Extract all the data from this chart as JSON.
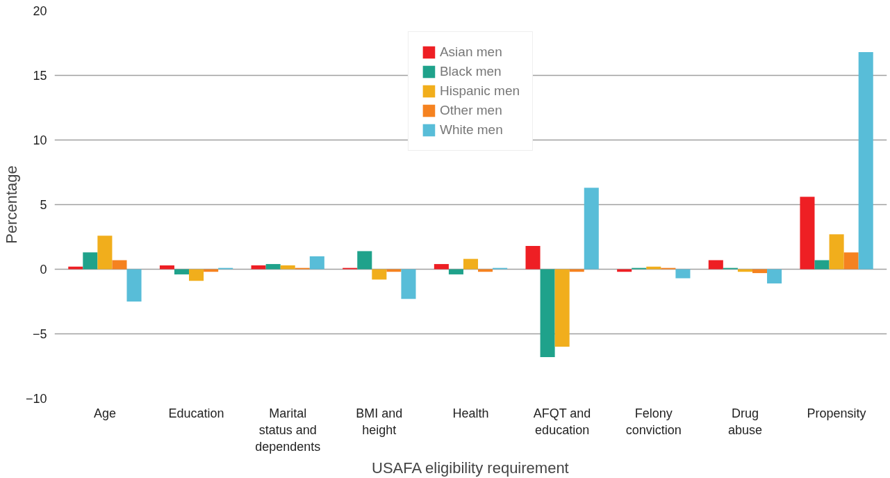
{
  "chart_data": {
    "type": "bar",
    "xlabel": "USAFA eligibility requirement",
    "ylabel": "Percentage",
    "categories": [
      "Age",
      "Education",
      "Marital\nstatus and\ndependents",
      "BMI and\nheight",
      "Health",
      "AFQT and\neducation",
      "Felony\nconviction",
      "Drug\nabuse",
      "Propensity"
    ],
    "series": [
      {
        "name": "Asian men",
        "color": "#ee1f24",
        "values": [
          0.2,
          0.3,
          0.3,
          0.1,
          0.4,
          1.8,
          -0.2,
          0.7,
          5.6
        ]
      },
      {
        "name": "Black men",
        "color": "#1fa28b",
        "values": [
          1.3,
          -0.4,
          0.4,
          1.4,
          -0.4,
          -6.8,
          0.1,
          0.1,
          0.7
        ]
      },
      {
        "name": "Hispanic men",
        "color": "#f1ae1c",
        "values": [
          2.6,
          -0.9,
          0.3,
          -0.8,
          0.8,
          -6.0,
          0.2,
          -0.2,
          2.7
        ]
      },
      {
        "name": "Other men",
        "color": "#f58220",
        "values": [
          0.7,
          -0.2,
          0.1,
          -0.2,
          -0.2,
          -0.2,
          0.1,
          -0.3,
          1.3
        ]
      },
      {
        "name": "White men",
        "color": "#58bdd8",
        "values": [
          -2.5,
          0.1,
          1.0,
          -2.3,
          0.1,
          6.3,
          -0.7,
          -1.1,
          16.8
        ]
      }
    ],
    "ylim": [
      -10,
      20
    ],
    "yticks": [
      {
        "value": -10,
        "label": "−10"
      },
      {
        "value": -5,
        "label": "−5"
      },
      0,
      5,
      10,
      15,
      20
    ],
    "grid": "y",
    "legend": "top"
  }
}
